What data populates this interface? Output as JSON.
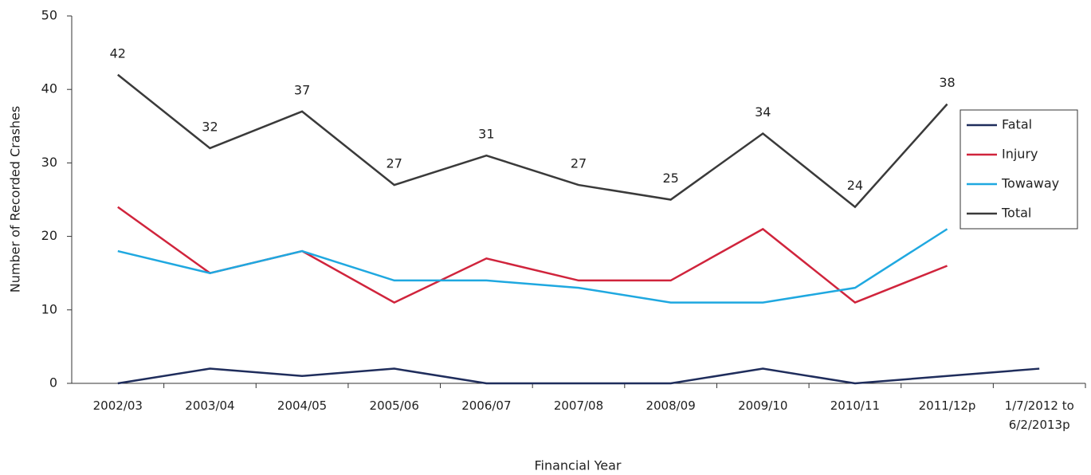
{
  "chart_data": {
    "type": "line",
    "x_label": "Financial Year",
    "y_label": "Number of Recorded Crashes",
    "categories": [
      "2002/03",
      "2003/04",
      "2004/05",
      "2005/06",
      "2006/07",
      "2007/08",
      "2008/09",
      "2009/10",
      "2010/11",
      "2011/12p",
      "1/7/2012 to 6/2/2013p"
    ],
    "series": [
      {
        "name": "Fatal",
        "color": "#1f2d5c",
        "values": [
          0,
          2,
          1,
          2,
          0,
          0,
          0,
          2,
          0,
          1,
          2
        ]
      },
      {
        "name": "Injury",
        "color": "#d0243c",
        "values": [
          24,
          15,
          18,
          11,
          17,
          14,
          14,
          21,
          11,
          16,
          null
        ]
      },
      {
        "name": "Towaway",
        "color": "#1fa8e0",
        "values": [
          18,
          15,
          18,
          14,
          14,
          13,
          11,
          11,
          13,
          21,
          null
        ]
      },
      {
        "name": "Total",
        "color": "#3a3a3a",
        "values": [
          42,
          32,
          37,
          27,
          31,
          27,
          25,
          34,
          24,
          38,
          null
        ],
        "data_labels": true
      }
    ],
    "ylim": [
      0,
      50
    ],
    "yticks": [
      0,
      10,
      20,
      30,
      40,
      50
    ],
    "grid": false,
    "legend": "right"
  }
}
